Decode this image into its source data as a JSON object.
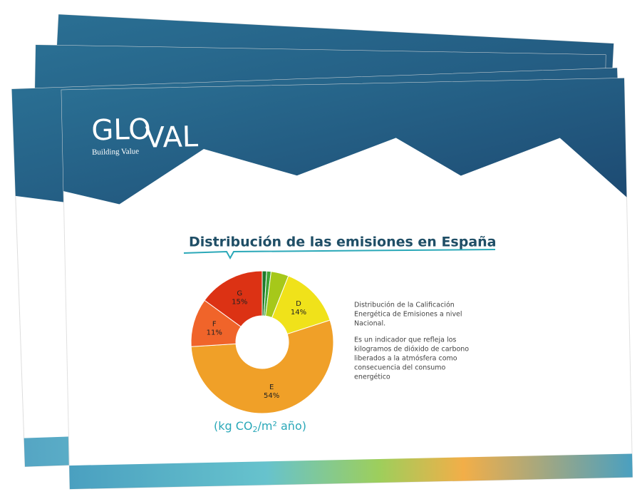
{
  "brand": {
    "logo_left": "GLO",
    "logo_right": "VAL",
    "tagline": "Building Value"
  },
  "chart_data": {
    "type": "donut",
    "title": "Distribución de las emisiones en España",
    "categories": [
      null,
      null,
      null,
      "D",
      "E",
      "F",
      "G"
    ],
    "values": [
      1,
      1,
      4,
      14,
      54,
      11,
      15
    ],
    "value_labels": [
      null,
      null,
      null,
      "14%",
      "54%",
      "11%",
      "15%"
    ],
    "colors": [
      "#1e7a2a",
      "#3fa535",
      "#a6c81a",
      "#f0e21a",
      "#f0a028",
      "#f0642a",
      "#dc3214"
    ],
    "unit_label": {
      "before": "(kg CO",
      "subscript": "2",
      "after": "/m² año)"
    }
  },
  "description": [
    "Distribución de la Calificación",
    "Energética de Emisiones a nivel",
    "Nacional.",
    "Es un indicador que refleja los",
    "kilogramos de dióxido de carbono",
    "liberados a la atmósfera como",
    "consecuencia del consumo",
    "energético"
  ]
}
